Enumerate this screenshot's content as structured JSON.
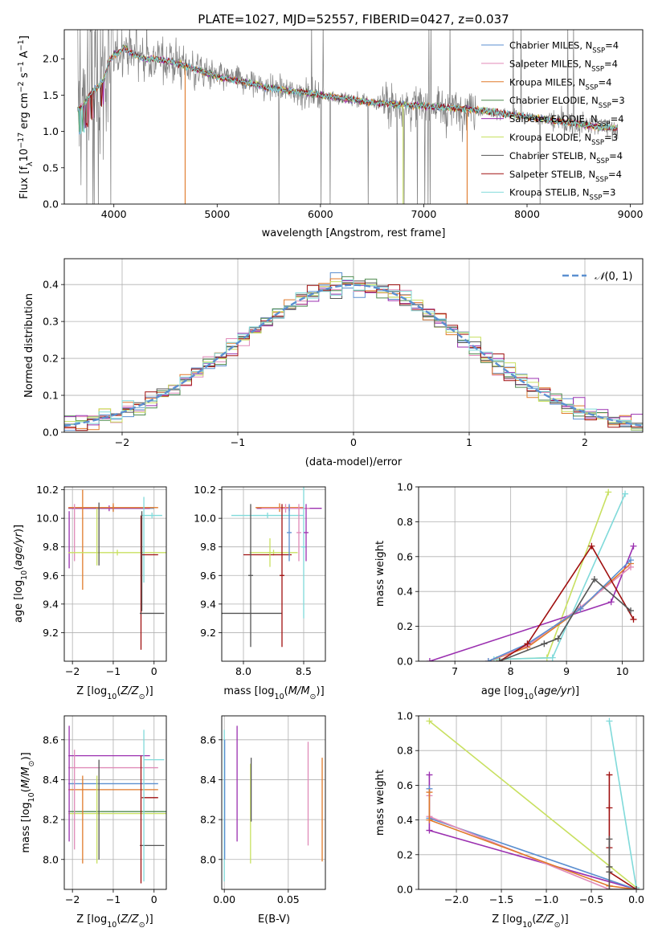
{
  "figure_title": "PLATE=1027, MJD=52557, FIBERID=0427, z=0.037",
  "colors": {
    "Chabrier MILES": "#5b8fd0",
    "Salpeter MILES": "#e08ab8",
    "Kroupa MILES": "#e07a2a",
    "Chabrier ELODIE": "#4e8a4e",
    "Salpeter ELODIE": "#9b30b0",
    "Kroupa ELODIE": "#c8e060",
    "Chabrier STELIB": "#555555",
    "Salpeter STELIB": "#a01010",
    "Kroupa STELIB": "#80dada",
    "data": "#808080"
  },
  "legend_items": [
    {
      "name": "Chabrier MILES",
      "nssp": "4"
    },
    {
      "name": "Salpeter MILES",
      "nssp": "4"
    },
    {
      "name": "Kroupa MILES",
      "nssp": "4"
    },
    {
      "name": "Chabrier ELODIE",
      "nssp": "3"
    },
    {
      "name": "Salpeter ELODIE",
      "nssp": "4"
    },
    {
      "name": "Kroupa ELODIE",
      "nssp": "3"
    },
    {
      "name": "Chabrier STELIB",
      "nssp": "4"
    },
    {
      "name": "Salpeter STELIB",
      "nssp": "4"
    },
    {
      "name": "Kroupa STELIB",
      "nssp": "3"
    }
  ],
  "chart_data": [
    {
      "type": "line",
      "name": "spectrum",
      "xlabel": "wavelength [Angstrom, rest frame]",
      "ylabel": "Flux [f_λ 10^-17 erg cm^-2 s^-1 A^-1]",
      "xlim": [
        3520,
        9120
      ],
      "ylim": [
        0,
        2.4
      ],
      "xticks": [
        4000,
        5000,
        6000,
        7000,
        8000,
        9000
      ],
      "yticks": [
        0.0,
        0.5,
        1.0,
        1.5,
        2.0
      ],
      "grid": false,
      "legend": "top-right",
      "model_anchors": {
        "x": [
          3650,
          3700,
          3800,
          3900,
          3950,
          4000,
          4100,
          4200,
          4300,
          4400,
          4600,
          4800,
          5000,
          5200,
          5500,
          6000,
          6500,
          7000,
          7500,
          8000,
          8500,
          8800
        ],
        "y": [
          1.3,
          1.35,
          1.55,
          1.7,
          1.95,
          2.05,
          2.15,
          2.05,
          2.0,
          2.0,
          1.95,
          1.85,
          1.75,
          1.7,
          1.6,
          1.5,
          1.4,
          1.35,
          1.3,
          1.2,
          1.1,
          1.05
        ]
      },
      "model_drops": [
        {
          "series": "Kroupa MILES",
          "x": 4690
        },
        {
          "series": "Kroupa ELODIE",
          "x": 6800
        },
        {
          "series": "Kroupa MILES",
          "x": 7420
        }
      ]
    },
    {
      "type": "step",
      "name": "residuals",
      "xlabel": "(data-model)/error",
      "ylabel": "Normed distribution",
      "xlim": [
        -2.5,
        2.5
      ],
      "ylim": [
        0,
        0.47
      ],
      "xticks": [
        -2,
        -1,
        0,
        1,
        2
      ],
      "yticks": [
        0.0,
        0.1,
        0.2,
        0.3,
        0.4
      ],
      "grid": true,
      "legend": "top-right",
      "reference_label": "N(0,1)",
      "bin_width": 0.1
    },
    {
      "type": "errorbar",
      "name": "age-vs-Z",
      "xlabel": "Z [log10(Z/Z☉)]",
      "ylabel": "age [log10(age/yr)]",
      "xlim": [
        -2.2,
        0.3
      ],
      "ylim": [
        9.0,
        10.22
      ],
      "xticks": [
        -2,
        -1,
        0
      ],
      "yticks": [
        9.2,
        9.4,
        9.6,
        9.8,
        10.0,
        10.2
      ],
      "grid": true,
      "points": [
        {
          "series": "Chabrier MILES",
          "x": -1.0,
          "xerr": 1.0,
          "y": 10.07,
          "yerr": 0.02
        },
        {
          "series": "Salpeter ELODIE",
          "x": -1.1,
          "xerr": 1.0,
          "y": 10.07,
          "yerr": 0.02
        },
        {
          "series": "Kroupa MILES",
          "x": -1.0,
          "xerr": 1.1,
          "y": 10.075,
          "yerr": 0.03
        },
        {
          "series": "Kroupa STELIB",
          "x": -0.05,
          "xerr": 0.25,
          "y": 10.02,
          "yerr": 0.02
        },
        {
          "series": "Salpeter ELODIE",
          "x": -2.08,
          "xerr": 0.02,
          "y": 9.85,
          "yerr": 0.2
        },
        {
          "series": "Salpeter MILES",
          "x": -1.95,
          "xerr": 0.02,
          "y": 9.9,
          "yerr": 0.2
        },
        {
          "series": "Kroupa MILES",
          "x": -1.75,
          "xerr": 0.02,
          "y": 9.85,
          "yerr": 0.35
        },
        {
          "series": "Kroupa ELODIE",
          "x": -0.9,
          "xerr": 1.2,
          "y": 9.76,
          "yerr": 0.02
        },
        {
          "series": "Kroupa ELODIE",
          "x": -1.4,
          "xerr": 0.02,
          "y": 9.87,
          "yerr": 0.2
        },
        {
          "series": "Chabrier STELIB",
          "x": -1.35,
          "xerr": 0.02,
          "y": 9.89,
          "yerr": 0.22
        },
        {
          "series": "Kroupa STELIB",
          "x": -0.25,
          "xerr": 0.02,
          "y": 9.85,
          "yerr": 0.3
        },
        {
          "series": "Salpeter STELIB",
          "x": -0.1,
          "xerr": 0.2,
          "y": 9.745,
          "yerr": 0.01
        },
        {
          "series": "Salpeter STELIB",
          "x": -0.32,
          "xerr": 0.02,
          "y": 9.55,
          "yerr": 0.47
        },
        {
          "series": "Chabrier STELIB",
          "x": -0.05,
          "xerr": 0.3,
          "y": 9.335,
          "yerr": 0.01
        },
        {
          "series": "Chabrier STELIB",
          "x": -0.3,
          "xerr": 0.02,
          "y": 9.7,
          "yerr": 0.35
        }
      ]
    },
    {
      "type": "errorbar",
      "name": "age-vs-mass",
      "xlabel": "mass [log10(M/M☉)]",
      "ylabel": "",
      "xlim": [
        7.82,
        8.68
      ],
      "ylim": [
        9.0,
        10.22
      ],
      "xticks": [
        8.0,
        8.5
      ],
      "yticks": [
        9.2,
        9.4,
        9.6,
        9.8,
        10.0,
        10.2
      ],
      "grid": true,
      "points": [
        {
          "series": "Salpeter ELODIE",
          "x": 8.38,
          "xerr": 0.27,
          "y": 10.07,
          "yerr": 0.02
        },
        {
          "series": "Kroupa MILES",
          "x": 8.3,
          "xerr": 0.2,
          "y": 10.075,
          "yerr": 0.03
        },
        {
          "series": "Salpeter MILES",
          "x": 8.35,
          "xerr": 0.2,
          "y": 10.07,
          "yerr": 0.03
        },
        {
          "series": "Kroupa STELIB",
          "x": 8.2,
          "xerr": 0.3,
          "y": 10.02,
          "yerr": 0.02
        },
        {
          "series": "Kroupa ELODIE",
          "x": 8.25,
          "xerr": 0.2,
          "y": 9.76,
          "yerr": 0.02
        },
        {
          "series": "Salpeter STELIB",
          "x": 8.2,
          "xerr": 0.2,
          "y": 9.745,
          "yerr": 0.01
        },
        {
          "series": "Chabrier STELIB",
          "x": 8.07,
          "xerr": 0.25,
          "y": 9.335,
          "yerr": 0.01
        },
        {
          "series": "Chabrier STELIB",
          "x": 8.06,
          "xerr": 0.02,
          "y": 9.6,
          "yerr": 0.5
        },
        {
          "series": "Kroupa ELODIE",
          "x": 8.22,
          "xerr": 0.02,
          "y": 9.76,
          "yerr": 0.1
        },
        {
          "series": "Salpeter STELIB",
          "x": 8.32,
          "xerr": 0.02,
          "y": 9.6,
          "yerr": 0.5
        },
        {
          "series": "Chabrier MILES",
          "x": 8.38,
          "xerr": 0.02,
          "y": 9.9,
          "yerr": 0.2
        },
        {
          "series": "Salpeter MILES",
          "x": 8.46,
          "xerr": 0.02,
          "y": 9.9,
          "yerr": 0.2
        },
        {
          "series": "Kroupa STELIB",
          "x": 8.5,
          "xerr": 0.02,
          "y": 9.8,
          "yerr": 0.5
        },
        {
          "series": "Salpeter ELODIE",
          "x": 8.52,
          "xerr": 0.02,
          "y": 9.9,
          "yerr": 0.2
        }
      ]
    },
    {
      "type": "line",
      "name": "mass-weight-vs-age",
      "xlabel": "age [log10(age/yr)]",
      "ylabel": "mass weight",
      "xlim": [
        6.35,
        10.38
      ],
      "ylim": [
        0,
        1.0
      ],
      "xticks": [
        7,
        8,
        9,
        10
      ],
      "yticks": [
        0.0,
        0.2,
        0.4,
        0.6,
        0.8,
        1.0
      ],
      "grid": true,
      "markers": "plus",
      "series": [
        {
          "series": "Kroupa ELODIE",
          "x": [
            7.75,
            8.65,
            9.75
          ],
          "y": [
            0.01,
            0.02,
            0.97
          ]
        },
        {
          "series": "Kroupa STELIB",
          "x": [
            7.7,
            8.75,
            10.05
          ],
          "y": [
            0.01,
            0.02,
            0.96
          ]
        },
        {
          "series": "Salpeter ELODIE",
          "x": [
            6.55,
            9.8,
            10.2
          ],
          "y": [
            0.0,
            0.34,
            0.66
          ]
        },
        {
          "series": "Kroupa MILES",
          "x": [
            7.6,
            8.3,
            9.25,
            10.15
          ],
          "y": [
            0.0,
            0.08,
            0.3,
            0.56
          ]
        },
        {
          "series": "Salpeter MILES",
          "x": [
            7.6,
            8.3,
            9.25,
            10.15
          ],
          "y": [
            0.0,
            0.09,
            0.31,
            0.54
          ]
        },
        {
          "series": "Chabrier MILES",
          "x": [
            7.6,
            8.3,
            9.25,
            10.15
          ],
          "y": [
            0.0,
            0.1,
            0.3,
            0.58
          ]
        },
        {
          "series": "Salpeter STELIB",
          "x": [
            7.8,
            8.3,
            9.45,
            10.2
          ],
          "y": [
            0.0,
            0.1,
            0.66,
            0.24
          ]
        },
        {
          "series": "Chabrier STELIB",
          "x": [
            7.8,
            8.6,
            8.85,
            9.5,
            10.15
          ],
          "y": [
            0.0,
            0.1,
            0.13,
            0.47,
            0.29
          ]
        }
      ]
    },
    {
      "type": "errorbar",
      "name": "mass-vs-Z",
      "xlabel": "Z [log10(Z/Z☉)]",
      "ylabel": "mass [log10(M/M☉)]",
      "xlim": [
        -2.2,
        0.3
      ],
      "ylim": [
        7.85,
        8.72
      ],
      "xticks": [
        -2,
        -1,
        0
      ],
      "yticks": [
        8.0,
        8.2,
        8.4,
        8.6
      ],
      "grid": true,
      "points": [
        {
          "series": "Salpeter ELODIE",
          "x": -1.1,
          "xerr": 1.0,
          "y": 8.52,
          "yerr": 0.01
        },
        {
          "series": "Kroupa STELIB",
          "x": 0.0,
          "xerr": 0.25,
          "y": 8.5,
          "yerr": 0.01
        },
        {
          "series": "Salpeter MILES",
          "x": -1.0,
          "xerr": 1.1,
          "y": 8.46,
          "yerr": 0.01
        },
        {
          "series": "Chabrier MILES",
          "x": -1.0,
          "xerr": 1.1,
          "y": 8.38,
          "yerr": 0.01
        },
        {
          "series": "Kroupa MILES",
          "x": -1.0,
          "xerr": 1.1,
          "y": 8.35,
          "yerr": 0.01
        },
        {
          "series": "Salpeter STELIB",
          "x": -0.1,
          "xerr": 0.2,
          "y": 8.31,
          "yerr": 0.01
        },
        {
          "series": "Chabrier ELODIE",
          "x": -0.9,
          "xerr": 1.2,
          "y": 8.24,
          "yerr": 0.01
        },
        {
          "series": "Kroupa ELODIE",
          "x": -0.9,
          "xerr": 1.2,
          "y": 8.23,
          "yerr": 0.01
        },
        {
          "series": "Chabrier STELIB",
          "x": -0.05,
          "xerr": 0.3,
          "y": 8.07,
          "yerr": 0.01
        },
        {
          "series": "Salpeter ELODIE",
          "x": -2.08,
          "xerr": 0.02,
          "y": 8.38,
          "yerr": 0.29
        },
        {
          "series": "Salpeter MILES",
          "x": -1.95,
          "xerr": 0.02,
          "y": 8.3,
          "yerr": 0.25
        },
        {
          "series": "Kroupa MILES",
          "x": -1.75,
          "xerr": 0.02,
          "y": 8.2,
          "yerr": 0.22
        },
        {
          "series": "Kroupa ELODIE",
          "x": -1.4,
          "xerr": 0.02,
          "y": 8.2,
          "yerr": 0.22
        },
        {
          "series": "Chabrier STELIB",
          "x": -1.35,
          "xerr": 0.02,
          "y": 8.25,
          "yerr": 0.25
        },
        {
          "series": "Kroupa STELIB",
          "x": -0.25,
          "xerr": 0.02,
          "y": 8.27,
          "yerr": 0.38
        },
        {
          "series": "Salpeter STELIB",
          "x": -0.32,
          "xerr": 0.02,
          "y": 8.2,
          "yerr": 0.32
        }
      ]
    },
    {
      "type": "errorbar",
      "name": "mass-vs-ebv",
      "xlabel": "E(B-V)",
      "ylabel": "",
      "xlim": [
        -0.002,
        0.079
      ],
      "ylim": [
        7.85,
        8.72
      ],
      "xticks": [
        0.0,
        0.05
      ],
      "yticks": [
        8.0,
        8.2,
        8.4,
        8.6
      ],
      "grid": true,
      "points": [
        {
          "series": "Kroupa STELIB",
          "x": 0.0,
          "xerr": 0.0,
          "y": 8.27,
          "yerr": 0.38
        },
        {
          "series": "Chabrier MILES",
          "x": 0.0003,
          "xerr": 0.0,
          "y": 8.3,
          "yerr": 0.3
        },
        {
          "series": "Salpeter ELODIE",
          "x": 0.01,
          "xerr": 0.0,
          "y": 8.38,
          "yerr": 0.29
        },
        {
          "series": "Kroupa ELODIE",
          "x": 0.0205,
          "xerr": 0.0,
          "y": 8.23,
          "yerr": 0.25
        },
        {
          "series": "Chabrier STELIB",
          "x": 0.021,
          "xerr": 0.0,
          "y": 8.35,
          "yerr": 0.16
        },
        {
          "series": "Salpeter MILES",
          "x": 0.0655,
          "xerr": 0.0,
          "y": 8.33,
          "yerr": 0.26
        },
        {
          "series": "Kroupa MILES",
          "x": 0.0765,
          "xerr": 0.0,
          "y": 8.25,
          "yerr": 0.26
        }
      ]
    },
    {
      "type": "line",
      "name": "mass-weight-vs-Z",
      "xlabel": "Z [log10(Z/Z☉)]",
      "ylabel": "mass weight",
      "xlim": [
        -2.42,
        0.08
      ],
      "ylim": [
        0,
        1.0
      ],
      "xticks": [
        -2.0,
        -1.5,
        -1.0,
        -0.5,
        0.0
      ],
      "yticks": [
        0.0,
        0.2,
        0.4,
        0.6,
        0.8,
        1.0
      ],
      "grid": true,
      "markers": "plus",
      "series": [
        {
          "series": "Kroupa ELODIE",
          "x": [
            -2.3,
            0.0
          ],
          "y": [
            0.97,
            0.01
          ]
        },
        {
          "series": "Kroupa STELIB",
          "x": [
            -0.3,
            0.0
          ],
          "y": [
            0.97,
            0.01
          ]
        },
        {
          "series": "Salpeter ELODIE",
          "x": [
            -2.3,
            -2.3,
            0.0
          ],
          "y": [
            0.66,
            0.34,
            0.0
          ]
        },
        {
          "series": "Chabrier MILES",
          "x": [
            -2.3,
            -2.3,
            0.0
          ],
          "y": [
            0.58,
            0.41,
            0.0
          ]
        },
        {
          "series": "Salpeter MILES",
          "x": [
            -2.3,
            -2.3,
            -0.3,
            0.0
          ],
          "y": [
            0.54,
            0.42,
            0.0,
            0.0
          ]
        },
        {
          "series": "Kroupa MILES",
          "x": [
            -2.3,
            -2.3,
            -0.3,
            0.0
          ],
          "y": [
            0.56,
            0.4,
            0.02,
            0.0
          ]
        },
        {
          "series": "Salpeter STELIB",
          "x": [
            -0.3,
            -0.3,
            -0.3,
            -0.3,
            0.0
          ],
          "y": [
            0.66,
            0.47,
            0.24,
            0.1,
            0.0
          ]
        },
        {
          "series": "Chabrier STELIB",
          "x": [
            -0.3,
            -0.3,
            -0.3,
            -0.3,
            0.0
          ],
          "y": [
            0.29,
            0.13,
            0.1,
            0.0,
            0.0
          ]
        }
      ]
    }
  ]
}
